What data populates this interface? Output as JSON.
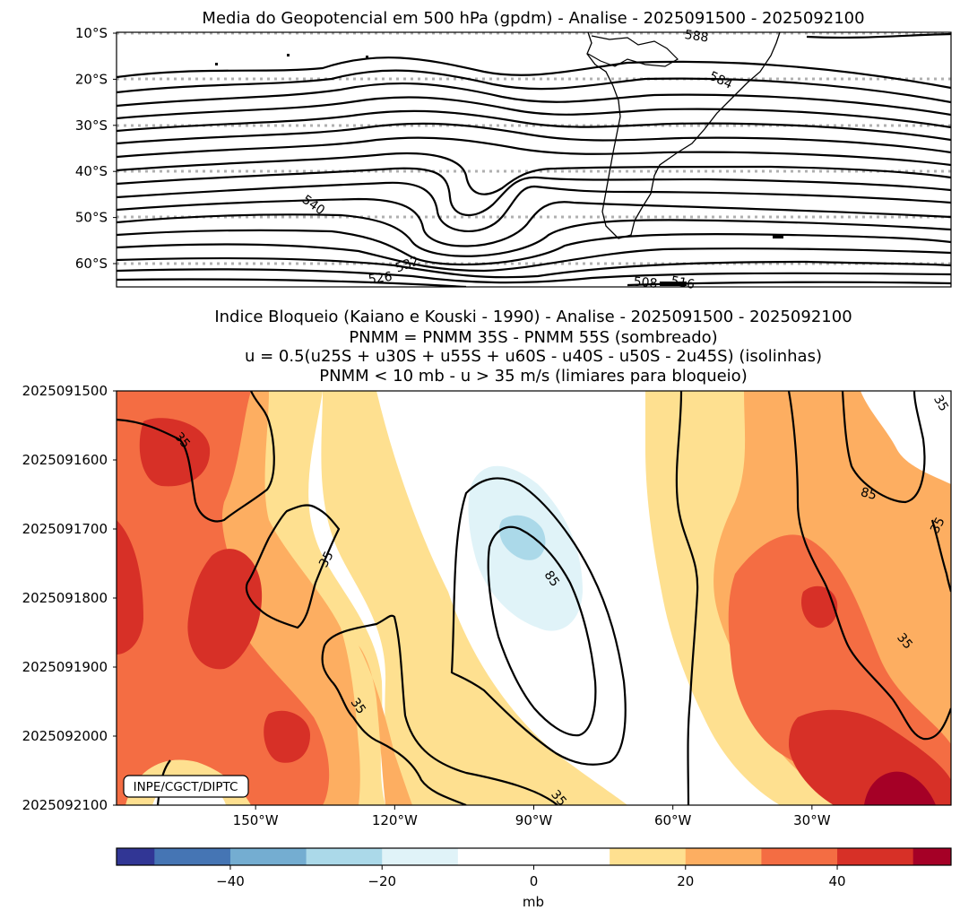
{
  "chart_data": [
    {
      "type": "contour-map",
      "title": "Media do Geopotencial em 500 hPa (gpdm) - Analise - 2025091500 - 2025092100",
      "y_ticks": [
        "10°S",
        "20°S",
        "30°S",
        "40°S",
        "50°S",
        "60°S"
      ],
      "y_values": [
        -10,
        -20,
        -30,
        -40,
        -50,
        -60
      ],
      "ylim": [
        -65,
        -10
      ],
      "gridlines": "dotted, latitude",
      "contour_labels": [
        {
          "text": "588",
          "lon": -55,
          "lat": -11.5
        },
        {
          "text": "584",
          "lon": -50,
          "lat": -21
        },
        {
          "text": "540",
          "lon": -138,
          "lat": -48
        },
        {
          "text": "532",
          "lon": -117,
          "lat": -61
        },
        {
          "text": "526",
          "lon": -123,
          "lat": -64
        },
        {
          "text": "508",
          "lon": -66,
          "lat": -65
        },
        {
          "text": "516",
          "lon": -58,
          "lat": -65
        }
      ]
    },
    {
      "type": "heatmap",
      "title_lines": [
        "Indice Bloqueio (Kaiano e Kouski - 1990) - Analise - 2025091500 - 2025092100",
        "PNMM = PNMM 35S - PNMM 55S (sombreado)",
        "u = 0.5(u25S + u30S + u55S + u60S - u40S - u50S - 2u45S) (isolinhas)",
        "PNMM < 10 mb - u > 35 m/s (limiares para bloqueio)"
      ],
      "x_ticks": [
        "150°W",
        "120°W",
        "90°W",
        "60°W",
        "30°W"
      ],
      "x_values": [
        -150,
        -120,
        -90,
        -60,
        -30
      ],
      "xlim": [
        -180,
        0
      ],
      "y_ticks": [
        "2025091500",
        "2025091600",
        "2025091700",
        "2025091800",
        "2025091900",
        "2025092000",
        "2025092100"
      ],
      "contour_labels": [
        "35",
        "35",
        "35",
        "35",
        "35",
        "35",
        "35",
        "85",
        "85"
      ],
      "colorbar": {
        "label": "mb",
        "ticks": [
          "−40",
          "−20",
          "0",
          "20",
          "40"
        ],
        "tick_values": [
          -40,
          -20,
          0,
          20,
          40
        ],
        "range": [
          -55,
          55
        ],
        "levels": [
          -55,
          -50,
          -40,
          -30,
          -20,
          -10,
          10,
          20,
          30,
          40,
          50,
          55
        ],
        "colors": [
          "#313695",
          "#4575b4",
          "#74add1",
          "#abd9e9",
          "#e0f3f8",
          "#ffffff",
          "#fee090",
          "#fdae61",
          "#f46d43",
          "#d73027",
          "#a50026"
        ]
      },
      "credit": "INPE/CGCT/DIPTC"
    }
  ]
}
